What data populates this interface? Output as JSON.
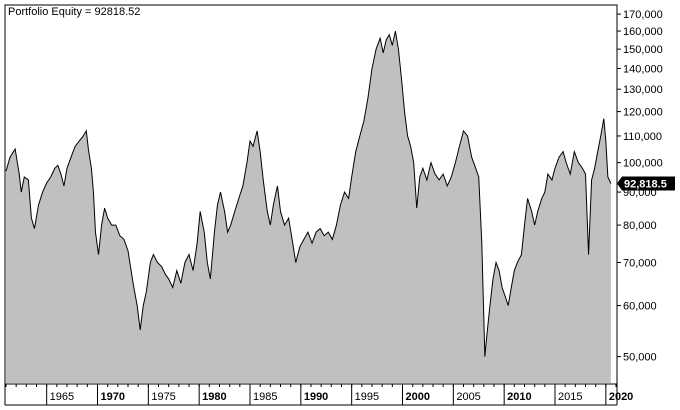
{
  "chart_data": {
    "type": "area",
    "title": "Portfolio Equity = 92818.52",
    "xlabel": "",
    "ylabel": "",
    "yscale": "log",
    "ylim": [
      45500,
      175000
    ],
    "xlim": [
      1961.0,
      2021.0
    ],
    "y_ticks": [
      {
        "value": 50000,
        "label": "50,000"
      },
      {
        "value": 60000,
        "label": "60,000"
      },
      {
        "value": 70000,
        "label": "70,000"
      },
      {
        "value": 80000,
        "label": "80,000"
      },
      {
        "value": 90000,
        "label": "90,000"
      },
      {
        "value": 100000,
        "label": "100,000"
      },
      {
        "value": 110000,
        "label": "110,000"
      },
      {
        "value": 120000,
        "label": "120,000"
      },
      {
        "value": 130000,
        "label": "130,000"
      },
      {
        "value": 140000,
        "label": "140,000"
      },
      {
        "value": 150000,
        "label": "150,000"
      },
      {
        "value": 160000,
        "label": "160,000"
      },
      {
        "value": 170000,
        "label": "170,000"
      }
    ],
    "x_ticks": [
      {
        "value": 1965,
        "label": "1965",
        "bold": false
      },
      {
        "value": 1970,
        "label": "1970",
        "bold": true
      },
      {
        "value": 1975,
        "label": "1975",
        "bold": false
      },
      {
        "value": 1980,
        "label": "1980",
        "bold": true
      },
      {
        "value": 1985,
        "label": "1985",
        "bold": false
      },
      {
        "value": 1990,
        "label": "1990",
        "bold": true
      },
      {
        "value": 1995,
        "label": "1995",
        "bold": false
      },
      {
        "value": 2000,
        "label": "2000",
        "bold": true
      },
      {
        "value": 2005,
        "label": "2005",
        "bold": false
      },
      {
        "value": 2010,
        "label": "2010",
        "bold": true
      },
      {
        "value": 2015,
        "label": "2015",
        "bold": false
      },
      {
        "value": 2020,
        "label": "2020",
        "bold": true
      }
    ],
    "last_value_label": "92,818.5",
    "grid": false,
    "colors": {
      "fill": "#c0c0c0",
      "line": "#000000",
      "badge": "#000000"
    },
    "series": [
      {
        "points": [
          [
            1961.0,
            97000
          ],
          [
            1961.4,
            102000
          ],
          [
            1961.9,
            105000
          ],
          [
            1962.3,
            96000
          ],
          [
            1962.5,
            90000
          ],
          [
            1962.8,
            95000
          ],
          [
            1963.2,
            94000
          ],
          [
            1963.5,
            82000
          ],
          [
            1963.8,
            79000
          ],
          [
            1964.2,
            86000
          ],
          [
            1964.6,
            90000
          ],
          [
            1965.0,
            93000
          ],
          [
            1965.4,
            95000
          ],
          [
            1965.8,
            98000
          ],
          [
            1966.1,
            99000
          ],
          [
            1966.4,
            96000
          ],
          [
            1966.7,
            92000
          ],
          [
            1967.0,
            98000
          ],
          [
            1967.4,
            102000
          ],
          [
            1967.8,
            106000
          ],
          [
            1968.2,
            108000
          ],
          [
            1968.6,
            110000
          ],
          [
            1968.9,
            112000
          ],
          [
            1969.1,
            105000
          ],
          [
            1969.4,
            98000
          ],
          [
            1969.6,
            90000
          ],
          [
            1969.8,
            78000
          ],
          [
            1970.1,
            72000
          ],
          [
            1970.4,
            80000
          ],
          [
            1970.7,
            85000
          ],
          [
            1971.0,
            82000
          ],
          [
            1971.4,
            80000
          ],
          [
            1971.8,
            80000
          ],
          [
            1972.2,
            77000
          ],
          [
            1972.6,
            76000
          ],
          [
            1973.0,
            73000
          ],
          [
            1973.5,
            65000
          ],
          [
            1973.9,
            60000
          ],
          [
            1974.2,
            55000
          ],
          [
            1974.5,
            60000
          ],
          [
            1974.8,
            63000
          ],
          [
            1975.2,
            70000
          ],
          [
            1975.5,
            72000
          ],
          [
            1975.9,
            70000
          ],
          [
            1976.3,
            69000
          ],
          [
            1976.7,
            67000
          ],
          [
            1977.0,
            66000
          ],
          [
            1977.4,
            64000
          ],
          [
            1977.8,
            68000
          ],
          [
            1978.2,
            65000
          ],
          [
            1978.6,
            70000
          ],
          [
            1979.0,
            72000
          ],
          [
            1979.4,
            68000
          ],
          [
            1979.8,
            75000
          ],
          [
            1980.1,
            84000
          ],
          [
            1980.5,
            78000
          ],
          [
            1980.8,
            70000
          ],
          [
            1981.1,
            66000
          ],
          [
            1981.5,
            78000
          ],
          [
            1981.8,
            86000
          ],
          [
            1982.1,
            90000
          ],
          [
            1982.5,
            84000
          ],
          [
            1982.8,
            78000
          ],
          [
            1983.1,
            80000
          ],
          [
            1983.5,
            84000
          ],
          [
            1983.9,
            88000
          ],
          [
            1984.3,
            92000
          ],
          [
            1984.7,
            100000
          ],
          [
            1985.0,
            108000
          ],
          [
            1985.3,
            106000
          ],
          [
            1985.7,
            112000
          ],
          [
            1986.0,
            104000
          ],
          [
            1986.3,
            94000
          ],
          [
            1986.7,
            84000
          ],
          [
            1987.0,
            80000
          ],
          [
            1987.3,
            86000
          ],
          [
            1987.7,
            92000
          ],
          [
            1988.0,
            84000
          ],
          [
            1988.4,
            80000
          ],
          [
            1988.8,
            82000
          ],
          [
            1989.2,
            75000
          ],
          [
            1989.5,
            70000
          ],
          [
            1989.9,
            74000
          ],
          [
            1990.3,
            76000
          ],
          [
            1990.7,
            78000
          ],
          [
            1991.1,
            75000
          ],
          [
            1991.5,
            78000
          ],
          [
            1991.9,
            79000
          ],
          [
            1992.3,
            77000
          ],
          [
            1992.7,
            78000
          ],
          [
            1993.1,
            76000
          ],
          [
            1993.5,
            80000
          ],
          [
            1993.9,
            86000
          ],
          [
            1994.3,
            90000
          ],
          [
            1994.7,
            88000
          ],
          [
            1995.0,
            95000
          ],
          [
            1995.4,
            104000
          ],
          [
            1995.8,
            110000
          ],
          [
            1996.2,
            116000
          ],
          [
            1996.6,
            126000
          ],
          [
            1997.0,
            140000
          ],
          [
            1997.4,
            150000
          ],
          [
            1997.8,
            156000
          ],
          [
            1998.1,
            148000
          ],
          [
            1998.4,
            155000
          ],
          [
            1998.7,
            158000
          ],
          [
            1999.0,
            152000
          ],
          [
            1999.3,
            160000
          ],
          [
            1999.6,
            150000
          ],
          [
            1999.9,
            135000
          ],
          [
            2000.2,
            120000
          ],
          [
            2000.5,
            110000
          ],
          [
            2000.8,
            106000
          ],
          [
            2001.1,
            100000
          ],
          [
            2001.4,
            85000
          ],
          [
            2001.7,
            95000
          ],
          [
            2002.0,
            98000
          ],
          [
            2002.4,
            94000
          ],
          [
            2002.8,
            100000
          ],
          [
            2003.2,
            96000
          ],
          [
            2003.6,
            94000
          ],
          [
            2004.0,
            96000
          ],
          [
            2004.4,
            92000
          ],
          [
            2004.8,
            95000
          ],
          [
            2005.2,
            100000
          ],
          [
            2005.6,
            106000
          ],
          [
            2006.0,
            112000
          ],
          [
            2006.4,
            110000
          ],
          [
            2006.8,
            102000
          ],
          [
            2007.2,
            98000
          ],
          [
            2007.5,
            95000
          ],
          [
            2007.8,
            75000
          ],
          [
            2008.1,
            50000
          ],
          [
            2008.3,
            54000
          ],
          [
            2008.6,
            60000
          ],
          [
            2008.9,
            66000
          ],
          [
            2009.2,
            70000
          ],
          [
            2009.5,
            68000
          ],
          [
            2009.8,
            64000
          ],
          [
            2010.1,
            62000
          ],
          [
            2010.4,
            60000
          ],
          [
            2010.7,
            64000
          ],
          [
            2011.0,
            68000
          ],
          [
            2011.3,
            70000
          ],
          [
            2011.7,
            72000
          ],
          [
            2012.0,
            80000
          ],
          [
            2012.3,
            88000
          ],
          [
            2012.7,
            84000
          ],
          [
            2013.0,
            80000
          ],
          [
            2013.3,
            84000
          ],
          [
            2013.7,
            88000
          ],
          [
            2014.0,
            90000
          ],
          [
            2014.3,
            96000
          ],
          [
            2014.7,
            94000
          ],
          [
            2015.0,
            98000
          ],
          [
            2015.4,
            102000
          ],
          [
            2015.8,
            104000
          ],
          [
            2016.1,
            100000
          ],
          [
            2016.5,
            96000
          ],
          [
            2016.9,
            104000
          ],
          [
            2017.3,
            100000
          ],
          [
            2017.7,
            98000
          ],
          [
            2018.0,
            96000
          ],
          [
            2018.3,
            72000
          ],
          [
            2018.6,
            94000
          ],
          [
            2018.9,
            98000
          ],
          [
            2019.2,
            104000
          ],
          [
            2019.5,
            110000
          ],
          [
            2019.8,
            117000
          ],
          [
            2020.0,
            108000
          ],
          [
            2020.2,
            95000
          ],
          [
            2020.5,
            92800
          ]
        ]
      }
    ]
  }
}
